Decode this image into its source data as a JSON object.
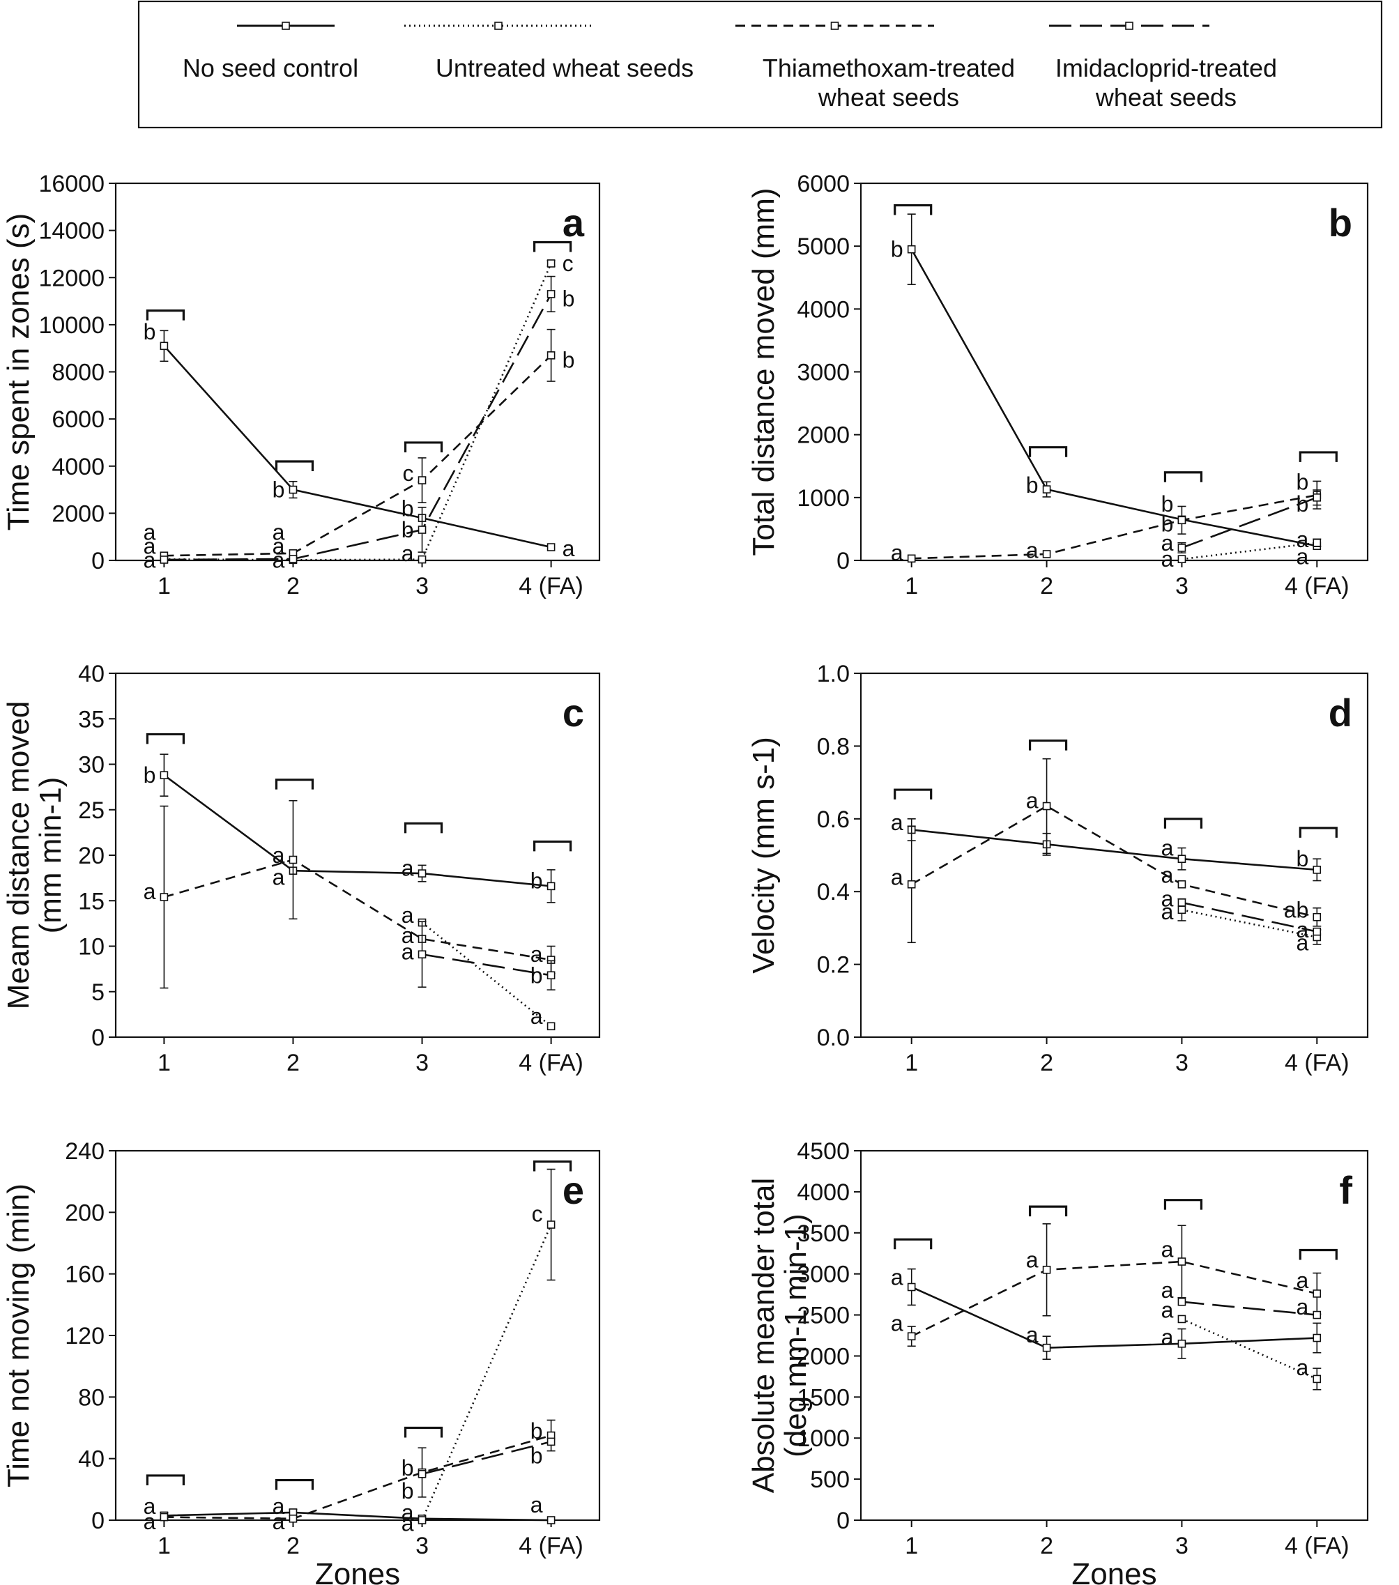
{
  "legend": {
    "entries": [
      {
        "label_lines": [
          "No seed control"
        ],
        "style": "solid"
      },
      {
        "label_lines": [
          "Untreated wheat seeds"
        ],
        "style": "dotted"
      },
      {
        "label_lines": [
          "Thiamethoxam-treated",
          "wheat seeds"
        ],
        "style": "dashed"
      },
      {
        "label_lines": [
          "Imidacloprid-treated",
          "wheat seeds"
        ],
        "style": "longdash"
      }
    ]
  },
  "chart_data": [
    {
      "type": "line",
      "panel": "a",
      "categories": [
        "1",
        "2",
        "3",
        "4 (FA)"
      ],
      "ylabel_lines": [
        "Time spent in zones (s)"
      ],
      "xlabel": "",
      "ylim": [
        0,
        16000
      ],
      "yticks": [
        0,
        2000,
        4000,
        6000,
        8000,
        10000,
        12000,
        14000,
        16000
      ],
      "series": [
        {
          "name": "No seed control",
          "style": "solid",
          "values": [
            9100,
            3000,
            1800,
            560
          ],
          "errors": [
            650,
            350,
            0,
            0
          ]
        },
        {
          "name": "Untreated wheat seeds",
          "style": "dotted",
          "values": [
            50,
            20,
            40,
            12600
          ],
          "errors": [
            0,
            0,
            0,
            120
          ]
        },
        {
          "name": "Thiamethoxam-treated wheat seeds",
          "style": "dashed",
          "values": [
            200,
            300,
            3400,
            8700
          ],
          "errors": [
            0,
            0,
            950,
            1100
          ]
        },
        {
          "name": "Imidacloprid-treated wheat seeds",
          "style": "longdash",
          "values": [
            30,
            60,
            1300,
            11300
          ],
          "errors": [
            0,
            0,
            950,
            750
          ]
        }
      ],
      "annotations": [
        {
          "text": "b",
          "x": 0,
          "y": 9700
        },
        {
          "text": "a",
          "x": 0,
          "y": 1200
        },
        {
          "text": "a",
          "x": 0,
          "y": 600
        },
        {
          "text": "a",
          "x": 0,
          "y": 20
        },
        {
          "text": "b",
          "x": 1,
          "y": 3000
        },
        {
          "text": "a",
          "x": 1,
          "y": 1200
        },
        {
          "text": "a",
          "x": 1,
          "y": 600
        },
        {
          "text": "a",
          "x": 1,
          "y": 20
        },
        {
          "text": "c",
          "x": 2,
          "y": 3700
        },
        {
          "text": "b",
          "x": 2,
          "y": 2200
        },
        {
          "text": "b",
          "x": 2,
          "y": 1300
        },
        {
          "text": "a",
          "x": 2,
          "y": 300
        },
        {
          "text": "a",
          "x": 3,
          "y": 500,
          "side": "right"
        },
        {
          "text": "c",
          "x": 3,
          "y": 12600,
          "side": "right"
        },
        {
          "text": "b",
          "x": 3,
          "y": 11100,
          "side": "right"
        },
        {
          "text": "b",
          "x": 3,
          "y": 8500,
          "side": "right"
        }
      ],
      "brackets": [
        10600,
        4200,
        5000,
        13500
      ]
    },
    {
      "type": "line",
      "panel": "b",
      "categories": [
        "1",
        "2",
        "3",
        "4 (FA)"
      ],
      "ylabel_lines": [
        "Total distance moved (mm)"
      ],
      "xlabel": "",
      "ylim": [
        0,
        6000
      ],
      "yticks": [
        0,
        1000,
        2000,
        3000,
        4000,
        5000,
        6000
      ],
      "series": [
        {
          "name": "No seed control",
          "style": "solid",
          "values": [
            4950,
            1130,
            650,
            230
          ],
          "errors": [
            560,
            120,
            0,
            0
          ]
        },
        {
          "name": "Untreated wheat seeds",
          "style": "dotted",
          "values": [
            null,
            null,
            20,
            280
          ],
          "errors": [
            0,
            0,
            0,
            60
          ]
        },
        {
          "name": "Thiamethoxam-treated wheat seeds",
          "style": "dashed",
          "values": [
            30,
            100,
            640,
            1040
          ],
          "errors": [
            0,
            0,
            220,
            220
          ]
        },
        {
          "name": "Imidacloprid-treated wheat seeds",
          "style": "longdash",
          "values": [
            null,
            null,
            200,
            1000
          ],
          "errors": [
            0,
            0,
            80,
            120
          ]
        }
      ],
      "annotations": [
        {
          "text": "b",
          "x": 0,
          "y": 4950
        },
        {
          "text": "a",
          "x": 0,
          "y": 120
        },
        {
          "text": "b",
          "x": 1,
          "y": 1200
        },
        {
          "text": "a",
          "x": 1,
          "y": 160
        },
        {
          "text": "b",
          "x": 2,
          "y": 900
        },
        {
          "text": "b",
          "x": 2,
          "y": 580
        },
        {
          "text": "a",
          "x": 2,
          "y": 280
        },
        {
          "text": "a",
          "x": 2,
          "y": 20
        },
        {
          "text": "b",
          "x": 3,
          "y": 1250
        },
        {
          "text": "b",
          "x": 3,
          "y": 900
        },
        {
          "text": "a",
          "x": 3,
          "y": 330
        },
        {
          "text": "a",
          "x": 3,
          "y": 60
        }
      ],
      "brackets": [
        5650,
        1800,
        1400,
        1720
      ]
    },
    {
      "type": "line",
      "panel": "c",
      "categories": [
        "1",
        "2",
        "3",
        "4 (FA)"
      ],
      "ylabel_lines": [
        "Meam distance moved",
        "(mm min-1)"
      ],
      "xlabel": "",
      "ylim": [
        0,
        40
      ],
      "yticks": [
        0,
        5,
        10,
        15,
        20,
        25,
        30,
        35,
        40
      ],
      "series": [
        {
          "name": "No seed control",
          "style": "solid",
          "values": [
            28.8,
            18.3,
            18.0,
            16.6
          ],
          "errors": [
            2.3,
            0,
            0.9,
            1.8
          ]
        },
        {
          "name": "Untreated wheat seeds",
          "style": "dotted",
          "values": [
            null,
            null,
            12.6,
            1.2
          ],
          "errors": [
            0,
            0,
            0,
            0
          ]
        },
        {
          "name": "Thiamethoxam-treated wheat seeds",
          "style": "dashed",
          "values": [
            15.4,
            19.5,
            10.8,
            8.5
          ],
          "errors": [
            10,
            6.5,
            0,
            1.5
          ]
        },
        {
          "name": "Imidacloprid-treated wheat seeds",
          "style": "longdash",
          "values": [
            null,
            null,
            9.1,
            6.8
          ],
          "errors": [
            0,
            0,
            3.6,
            1.6
          ]
        }
      ],
      "annotations": [
        {
          "text": "b",
          "x": 0,
          "y": 28.8
        },
        {
          "text": "a",
          "x": 0,
          "y": 16.0
        },
        {
          "text": "a",
          "x": 1,
          "y": 20.0
        },
        {
          "text": "a",
          "x": 1,
          "y": 17.6
        },
        {
          "text": "a",
          "x": 2,
          "y": 18.6
        },
        {
          "text": "a",
          "x": 2,
          "y": 13.4
        },
        {
          "text": "a",
          "x": 2,
          "y": 11.2
        },
        {
          "text": "a",
          "x": 2,
          "y": 9.4
        },
        {
          "text": "b",
          "x": 3,
          "y": 17.2
        },
        {
          "text": "a",
          "x": 3,
          "y": 9.1
        },
        {
          "text": "b",
          "x": 3,
          "y": 6.8
        },
        {
          "text": "a",
          "x": 3,
          "y": 2.3
        }
      ],
      "brackets": [
        33.3,
        28.3,
        23.5,
        21.5
      ]
    },
    {
      "type": "line",
      "panel": "d",
      "categories": [
        "1",
        "2",
        "3",
        "4 (FA)"
      ],
      "ylabel_lines": [
        "Velocity (mm s-1)"
      ],
      "xlabel": "",
      "ylim": [
        0,
        1.0
      ],
      "yticks": [
        0.0,
        0.2,
        0.4,
        0.6,
        0.8,
        1.0
      ],
      "ytick_labels": [
        "0.0",
        "0.2",
        "0.4",
        "0.6",
        "0.8",
        "1.0"
      ],
      "series": [
        {
          "name": "No seed control",
          "style": "solid",
          "values": [
            0.57,
            0.53,
            0.49,
            0.46
          ],
          "errors": [
            0.03,
            0.03,
            0.03,
            0.03
          ]
        },
        {
          "name": "Untreated wheat seeds",
          "style": "dotted",
          "values": [
            null,
            null,
            0.35,
            0.275
          ],
          "errors": [
            0,
            0,
            0.03,
            0.02
          ]
        },
        {
          "name": "Thiamethoxam-treated wheat seeds",
          "style": "dashed",
          "values": [
            0.42,
            0.635,
            0.42,
            0.33
          ],
          "errors": [
            0.16,
            0.13,
            0,
            0.025
          ]
        },
        {
          "name": "Imidacloprid-treated wheat seeds",
          "style": "longdash",
          "values": [
            null,
            null,
            0.37,
            0.29
          ],
          "errors": [
            0,
            0,
            0,
            0
          ]
        }
      ],
      "annotations": [
        {
          "text": "a",
          "x": 0,
          "y": 0.59
        },
        {
          "text": "a",
          "x": 0,
          "y": 0.44
        },
        {
          "text": "a",
          "x": 1,
          "y": 0.65
        },
        {
          "text": "a",
          "x": 2,
          "y": 0.52
        },
        {
          "text": "a",
          "x": 2,
          "y": 0.445
        },
        {
          "text": "a",
          "x": 2,
          "y": 0.38
        },
        {
          "text": "a",
          "x": 2,
          "y": 0.345
        },
        {
          "text": "b",
          "x": 3,
          "y": 0.49
        },
        {
          "text": "ab",
          "x": 3,
          "y": 0.35
        },
        {
          "text": "a",
          "x": 3,
          "y": 0.295
        },
        {
          "text": "a",
          "x": 3,
          "y": 0.26
        }
      ],
      "brackets": [
        0.68,
        0.815,
        0.6,
        0.575
      ]
    },
    {
      "type": "line",
      "panel": "e",
      "categories": [
        "1",
        "2",
        "3",
        "4 (FA)"
      ],
      "ylabel_lines": [
        "Time not moving (min)"
      ],
      "xlabel": "Zones",
      "ylim": [
        0,
        240
      ],
      "yticks": [
        0,
        40,
        80,
        120,
        160,
        200,
        240
      ],
      "series": [
        {
          "name": "No seed control",
          "style": "solid",
          "values": [
            3,
            5,
            1,
            0
          ],
          "errors": [
            2,
            2,
            0,
            0
          ]
        },
        {
          "name": "Untreated wheat seeds",
          "style": "dotted",
          "values": [
            null,
            null,
            0,
            192
          ],
          "errors": [
            0,
            0,
            0,
            36
          ]
        },
        {
          "name": "Thiamethoxam-treated wheat seeds",
          "style": "dashed",
          "values": [
            2,
            1,
            31,
            55
          ],
          "errors": [
            0,
            0,
            16,
            10
          ]
        },
        {
          "name": "Imidacloprid-treated wheat seeds",
          "style": "longdash",
          "values": [
            null,
            null,
            30,
            51
          ],
          "errors": [
            0,
            0,
            0,
            0
          ]
        }
      ],
      "annotations": [
        {
          "text": "a",
          "x": 0,
          "y": 9
        },
        {
          "text": "a",
          "x": 0,
          "y": -1
        },
        {
          "text": "a",
          "x": 1,
          "y": 9
        },
        {
          "text": "a",
          "x": 1,
          "y": -1
        },
        {
          "text": "b",
          "x": 2,
          "y": 34
        },
        {
          "text": "b",
          "x": 2,
          "y": 19
        },
        {
          "text": "a",
          "x": 2,
          "y": 5
        },
        {
          "text": "a",
          "x": 2,
          "y": -2
        },
        {
          "text": "a",
          "x": 3,
          "y": 10
        },
        {
          "text": "c",
          "x": 3,
          "y": 199
        },
        {
          "text": "b",
          "x": 3,
          "y": 58
        },
        {
          "text": "b",
          "x": 3,
          "y": 42
        }
      ],
      "brackets": [
        29,
        26,
        60,
        233
      ]
    },
    {
      "type": "line",
      "panel": "f",
      "categories": [
        "1",
        "2",
        "3",
        "4 (FA)"
      ],
      "ylabel_lines": [
        "Absolute meander total",
        "(deg mm-1 min-1)"
      ],
      "xlabel": "Zones",
      "ylim": [
        0,
        4500
      ],
      "yticks": [
        0,
        500,
        1000,
        1500,
        2000,
        2500,
        3000,
        3500,
        4000,
        4500
      ],
      "series": [
        {
          "name": "No seed control",
          "style": "solid",
          "values": [
            2840,
            2100,
            2150,
            2220
          ],
          "errors": [
            220,
            140,
            180,
            180
          ]
        },
        {
          "name": "Untreated wheat seeds",
          "style": "dotted",
          "values": [
            null,
            null,
            2450,
            1720
          ],
          "errors": [
            0,
            0,
            0,
            130
          ]
        },
        {
          "name": "Thiamethoxam-treated wheat seeds",
          "style": "dashed",
          "values": [
            2240,
            3050,
            3150,
            2760
          ],
          "errors": [
            120,
            560,
            440,
            250
          ]
        },
        {
          "name": "Imidacloprid-treated wheat seeds",
          "style": "longdash",
          "values": [
            null,
            null,
            2660,
            2500
          ],
          "errors": [
            0,
            0,
            0,
            0
          ]
        }
      ],
      "annotations": [
        {
          "text": "a",
          "x": 0,
          "y": 2960
        },
        {
          "text": "a",
          "x": 0,
          "y": 2400
        },
        {
          "text": "a",
          "x": 1,
          "y": 3170
        },
        {
          "text": "a",
          "x": 1,
          "y": 2260
        },
        {
          "text": "a",
          "x": 2,
          "y": 3300
        },
        {
          "text": "a",
          "x": 2,
          "y": 2800
        },
        {
          "text": "a",
          "x": 2,
          "y": 2560
        },
        {
          "text": "a",
          "x": 2,
          "y": 2230
        },
        {
          "text": "a",
          "x": 3,
          "y": 2920
        },
        {
          "text": "a",
          "x": 3,
          "y": 2600
        },
        {
          "text": "a",
          "x": 3,
          "y": 1860
        }
      ],
      "brackets": [
        3420,
        3820,
        3900,
        3290
      ]
    }
  ]
}
